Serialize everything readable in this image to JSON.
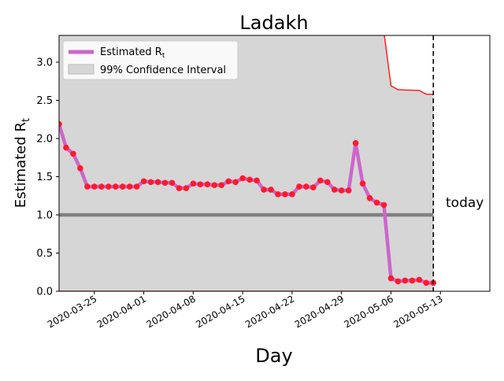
{
  "chart_data": {
    "type": "line",
    "title": "Ladakh",
    "xlabel": "Day",
    "ylabel_main": "Estimated R",
    "ylabel_sub": "t",
    "x_start": "2020-03-20",
    "dates": [
      "2020-03-20",
      "2020-03-21",
      "2020-03-22",
      "2020-03-23",
      "2020-03-24",
      "2020-03-25",
      "2020-03-26",
      "2020-03-27",
      "2020-03-28",
      "2020-03-29",
      "2020-03-30",
      "2020-03-31",
      "2020-04-01",
      "2020-04-02",
      "2020-04-03",
      "2020-04-04",
      "2020-04-05",
      "2020-04-06",
      "2020-04-07",
      "2020-04-08",
      "2020-04-09",
      "2020-04-10",
      "2020-04-11",
      "2020-04-12",
      "2020-04-13",
      "2020-04-14",
      "2020-04-15",
      "2020-04-16",
      "2020-04-17",
      "2020-04-18",
      "2020-04-19",
      "2020-04-20",
      "2020-04-21",
      "2020-04-22",
      "2020-04-23",
      "2020-04-24",
      "2020-04-25",
      "2020-04-26",
      "2020-04-27",
      "2020-04-28",
      "2020-04-29",
      "2020-04-30",
      "2020-05-01",
      "2020-05-02",
      "2020-05-03",
      "2020-05-04",
      "2020-05-05",
      "2020-05-06",
      "2020-05-07",
      "2020-05-08",
      "2020-05-09",
      "2020-05-10",
      "2020-05-11",
      "2020-05-12"
    ],
    "values": [
      2.19,
      1.88,
      1.8,
      1.61,
      1.37,
      1.37,
      1.37,
      1.37,
      1.37,
      1.37,
      1.37,
      1.37,
      1.44,
      1.43,
      1.43,
      1.42,
      1.42,
      1.35,
      1.35,
      1.41,
      1.4,
      1.4,
      1.39,
      1.39,
      1.44,
      1.43,
      1.48,
      1.46,
      1.45,
      1.33,
      1.33,
      1.27,
      1.27,
      1.27,
      1.37,
      1.37,
      1.36,
      1.45,
      1.43,
      1.33,
      1.32,
      1.32,
      1.94,
      1.41,
      1.22,
      1.16,
      1.13,
      0.17,
      0.13,
      0.14,
      0.14,
      0.15,
      0.11,
      0.11
    ],
    "upper_dates": [
      "2020-05-05",
      "2020-05-06",
      "2020-05-07",
      "2020-05-08",
      "2020-05-09",
      "2020-05-10",
      "2020-05-11",
      "2020-05-12"
    ],
    "upper_values": [
      3.4,
      2.69,
      2.64,
      2.635,
      2.632,
      2.63,
      2.58,
      2.58
    ],
    "lower_value": 0.0,
    "today_date": "2020-05-12",
    "today_label": "today",
    "reference_y": 1.0,
    "xlim": [
      "2020-03-20",
      "2020-05-20"
    ],
    "ylim": [
      0,
      3.35
    ],
    "yticks": [
      0.0,
      0.5,
      1.0,
      1.5,
      2.0,
      2.5,
      3.0
    ],
    "ytick_labels": [
      "0.0",
      "0.5",
      "1.0",
      "1.5",
      "2.0",
      "2.5",
      "3.0"
    ],
    "xticks": [
      "2020-03-25",
      "2020-04-01",
      "2020-04-08",
      "2020-04-15",
      "2020-04-22",
      "2020-04-29",
      "2020-05-06",
      "2020-05-13"
    ],
    "legend": [
      {
        "label": "Estimated R",
        "sub": "t",
        "color": "#cc66cc"
      },
      {
        "label": "99% Confidence Interval",
        "color": "#d6d6d6"
      }
    ],
    "legend_position": "upper-left",
    "colors": {
      "line": "#cc66cc",
      "points": "#ff1a2e",
      "ci_fill": "#d6d6d6",
      "ci_edge": "#ff2020",
      "reference": "#808080",
      "today": "#000000"
    }
  }
}
